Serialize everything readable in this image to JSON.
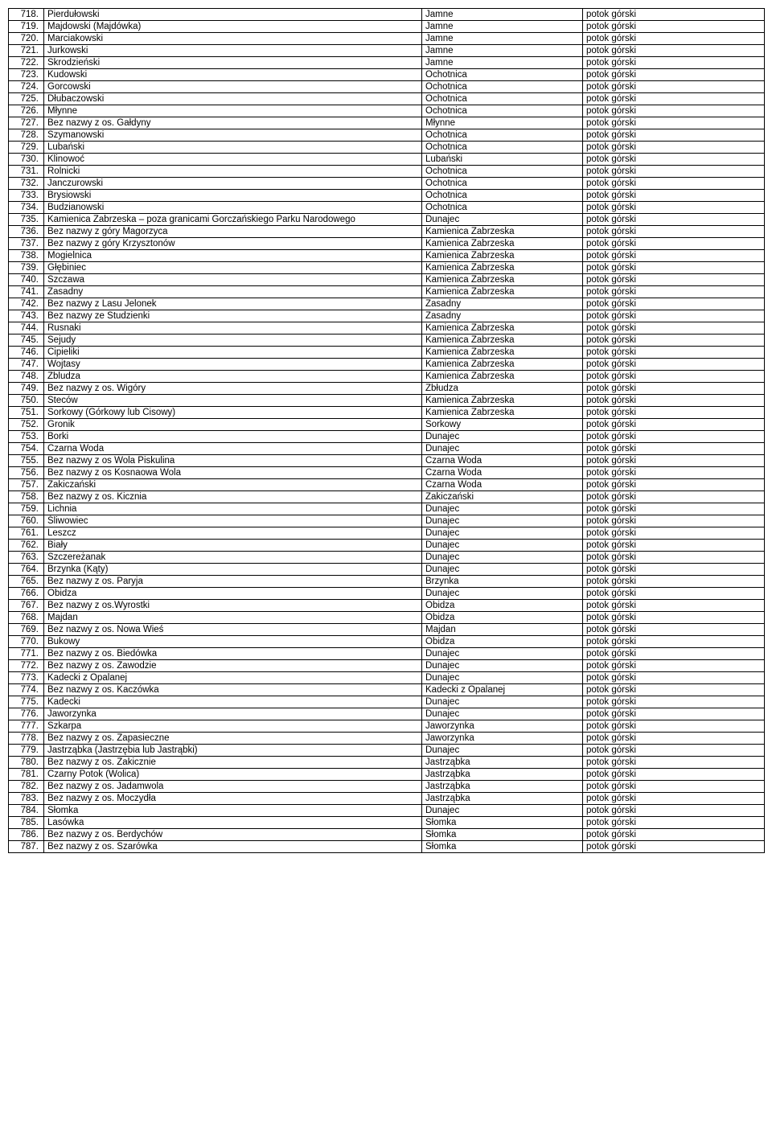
{
  "columns": {
    "type_label": "potok górski"
  },
  "rows": [
    {
      "n": "718.",
      "name": "Pierdułowski",
      "recv": "Jamne"
    },
    {
      "n": "719.",
      "name": "Majdowski (Majdówka)",
      "recv": "Jamne"
    },
    {
      "n": "720.",
      "name": "Marciakowski",
      "recv": "Jamne"
    },
    {
      "n": "721.",
      "name": "Jurkowski",
      "recv": "Jamne"
    },
    {
      "n": "722.",
      "name": "Skrodzieński",
      "recv": "Jamne"
    },
    {
      "n": "723.",
      "name": "Kudowski",
      "recv": "Ochotnica"
    },
    {
      "n": "724.",
      "name": "Gorcowski",
      "recv": "Ochotnica"
    },
    {
      "n": "725.",
      "name": "Dłubaczowski",
      "recv": "Ochotnica"
    },
    {
      "n": "726.",
      "name": "Młynne",
      "recv": "Ochotnica"
    },
    {
      "n": "727.",
      "name": "Bez nazwy z os. Gałdyny",
      "recv": "Młynne"
    },
    {
      "n": "728.",
      "name": "Szymanowski",
      "recv": "Ochotnica"
    },
    {
      "n": "729.",
      "name": "Lubański",
      "recv": "Ochotnica"
    },
    {
      "n": "730.",
      "name": "Klinowoć",
      "recv": "Lubański"
    },
    {
      "n": "731.",
      "name": "Rolnicki",
      "recv": "Ochotnica"
    },
    {
      "n": "732.",
      "name": "Janczurowski",
      "recv": "Ochotnica"
    },
    {
      "n": "733.",
      "name": "Brysiowski",
      "recv": "Ochotnica"
    },
    {
      "n": "734.",
      "name": "Budzianowski",
      "recv": "Ochotnica"
    },
    {
      "n": "735.",
      "name": "Kamienica Zabrzeska – poza granicami Gorczańskiego Parku Narodowego",
      "recv": "Dunajec"
    },
    {
      "n": "736.",
      "name": "Bez nazwy z góry Magorzyca",
      "recv": "Kamienica Zabrzeska"
    },
    {
      "n": "737.",
      "name": "Bez nazwy z góry Krzysztonów",
      "recv": "Kamienica Zabrzeska"
    },
    {
      "n": "738.",
      "name": "Mogielnica",
      "recv": "Kamienica Zabrzeska"
    },
    {
      "n": "739.",
      "name": "Głębiniec",
      "recv": "Kamienica Zabrzeska"
    },
    {
      "n": "740.",
      "name": "Szczawa",
      "recv": "Kamienica Zabrzeska"
    },
    {
      "n": "741.",
      "name": "Zasadny",
      "recv": "Kamienica Zabrzeska"
    },
    {
      "n": "742.",
      "name": "Bez nazwy z Lasu Jelonek",
      "recv": "Zasadny"
    },
    {
      "n": "743.",
      "name": "Bez nazwy ze Studzienki",
      "recv": "Zasadny"
    },
    {
      "n": "744.",
      "name": "Rusnaki",
      "recv": "Kamienica Zabrzeska"
    },
    {
      "n": "745.",
      "name": "Sejudy",
      "recv": "Kamienica Zabrzeska"
    },
    {
      "n": "746.",
      "name": "Cipieliki",
      "recv": "Kamienica Zabrzeska"
    },
    {
      "n": "747.",
      "name": "Wojtasy",
      "recv": "Kamienica Zabrzeska"
    },
    {
      "n": "748.",
      "name": "Zbludza",
      "recv": "Kamienica Zabrzeska"
    },
    {
      "n": "749.",
      "name": "Bez nazwy z os. Wigóry",
      "recv": "Zbłudza"
    },
    {
      "n": "750.",
      "name": "Steców",
      "recv": "Kamienica Zabrzeska"
    },
    {
      "n": "751.",
      "name": "Sorkowy (Górkowy lub Cisowy)",
      "recv": "Kamienica Zabrzeska"
    },
    {
      "n": "752.",
      "name": "Gronik",
      "recv": "Sorkowy"
    },
    {
      "n": "753.",
      "name": "Borki",
      "recv": "Dunajec"
    },
    {
      "n": "754.",
      "name": "Czarna Woda",
      "recv": "Dunajec"
    },
    {
      "n": "755.",
      "name": "Bez nazwy z os Wola Piskulina",
      "recv": "Czarna Woda"
    },
    {
      "n": "756.",
      "name": "Bez nazwy z os Kosnaowa Wola",
      "recv": "Czarna Woda"
    },
    {
      "n": "757.",
      "name": "Zakiczański",
      "recv": "Czarna Woda"
    },
    {
      "n": "758.",
      "name": "Bez nazwy z os. Kicznia",
      "recv": "Zakiczański"
    },
    {
      "n": "759.",
      "name": "Lichnia",
      "recv": "Dunajec"
    },
    {
      "n": "760.",
      "name": "Śliwowiec",
      "recv": "Dunajec"
    },
    {
      "n": "761.",
      "name": "Leszcz",
      "recv": "Dunajec"
    },
    {
      "n": "762.",
      "name": "Biały",
      "recv": "Dunajec"
    },
    {
      "n": "763.",
      "name": "Szczereżanak",
      "recv": "Dunajec"
    },
    {
      "n": "764.",
      "name": "Brzynka (Kąty)",
      "recv": "Dunajec"
    },
    {
      "n": "765.",
      "name": "Bez nazwy z os. Paryja",
      "recv": "Brzynka"
    },
    {
      "n": "766.",
      "name": "Obidza",
      "recv": "Dunajec"
    },
    {
      "n": "767.",
      "name": "Bez nazwy z os.Wyrostki",
      "recv": "Obidza"
    },
    {
      "n": "768.",
      "name": "Majdan",
      "recv": "Obidza"
    },
    {
      "n": "769.",
      "name": "Bez nazwy z os. Nowa Wieś",
      "recv": "Majdan"
    },
    {
      "n": "770.",
      "name": "Bukowy",
      "recv": "Obidza"
    },
    {
      "n": "771.",
      "name": "Bez nazwy z os. Biedówka",
      "recv": "Dunajec"
    },
    {
      "n": "772.",
      "name": "Bez nazwy z os. Zawodzie",
      "recv": "Dunajec"
    },
    {
      "n": "773.",
      "name": "Kadecki z Opalanej",
      "recv": "Dunajec"
    },
    {
      "n": "774.",
      "name": "Bez nazwy z os. Kaczówka",
      "recv": "Kadecki z Opalanej"
    },
    {
      "n": "775.",
      "name": "Kadecki",
      "recv": "Dunajec"
    },
    {
      "n": "776.",
      "name": "Jaworzynka",
      "recv": "Dunajec"
    },
    {
      "n": "777.",
      "name": "Szkarpa",
      "recv": "Jaworzynka"
    },
    {
      "n": "778.",
      "name": "Bez nazwy z os. Zapasieczne",
      "recv": "Jaworzynka"
    },
    {
      "n": "779.",
      "name": "Jastrząbka (Jastrzębia lub Jastrąbki)",
      "recv": "Dunajec"
    },
    {
      "n": "780.",
      "name": "Bez nazwy z os. Zakicznie",
      "recv": "Jastrząbka"
    },
    {
      "n": "781.",
      "name": "Czarny Potok (Wolica)",
      "recv": "Jastrząbka"
    },
    {
      "n": "782.",
      "name": "Bez nazwy z os. Jadamwola",
      "recv": "Jastrząbka"
    },
    {
      "n": "783.",
      "name": "Bez nazwy z os. Moczydła",
      "recv": "Jastrząbka"
    },
    {
      "n": "784.",
      "name": "Słomka",
      "recv": "Dunajec"
    },
    {
      "n": "785.",
      "name": "Lasówka",
      "recv": "Słomka"
    },
    {
      "n": "786.",
      "name": "Bez nazwy z os. Berdychów",
      "recv": "Słomka"
    },
    {
      "n": "787.",
      "name": "Bez nazwy z os. Szarówka",
      "recv": "Słomka"
    }
  ]
}
